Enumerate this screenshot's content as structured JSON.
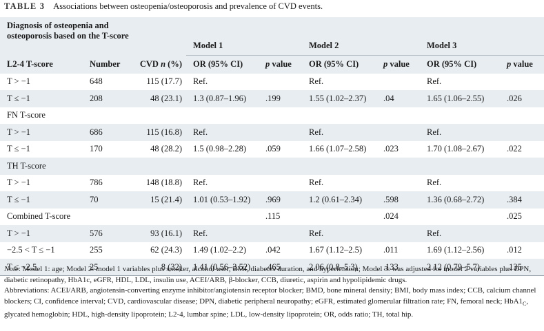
{
  "caption": {
    "label": "TABLE 3",
    "text": "Associations between osteopenia/osteoporosis and prevalence of CVD events."
  },
  "header": {
    "diagnosis_line1": "Diagnosis of osteopenia and",
    "diagnosis_line2": "osteoporosis based on the T-score",
    "model1": "Model 1",
    "model2": "Model 2",
    "model3": "Model 3",
    "col_number": "Number",
    "col_cvd_prefix": "CVD ",
    "col_cvd_italic": "n",
    "col_cvd_suffix": " (%)",
    "col_or": "OR (95% CI)",
    "col_p_italic": "p",
    "col_p_suffix": " value"
  },
  "first_group_label": "L2-4 T-score",
  "rows": [
    {
      "label": "T > −1",
      "number": "648",
      "cvd": "115 (17.7)",
      "or1": "Ref.",
      "p1": "",
      "or2": "Ref.",
      "p2": "",
      "or3": "Ref.",
      "p3": ""
    },
    {
      "label": "T ≤ −1",
      "number": "208",
      "cvd": "48 (23.1)",
      "or1": "1.3 (0.87–1.96)",
      "p1": ".199",
      "or2": "1.55 (1.02–2.37)",
      "p2": ".04",
      "or3": "1.65 (1.06–2.55)",
      "p3": ".026"
    },
    {
      "label": "FN T-score",
      "number": "",
      "cvd": "",
      "or1": "",
      "p1": "",
      "or2": "",
      "p2": "",
      "or3": "",
      "p3": ""
    },
    {
      "label": "T > −1",
      "number": "686",
      "cvd": "115 (16.8)",
      "or1": "Ref.",
      "p1": "",
      "or2": "Ref.",
      "p2": "",
      "or3": "Ref.",
      "p3": ""
    },
    {
      "label": "T ≤ −1",
      "number": "170",
      "cvd": "48 (28.2)",
      "or1": "1.5 (0.98–2.28)",
      "p1": ".059",
      "or2": "1.66 (1.07–2.58)",
      "p2": ".023",
      "or3": "1.70 (1.08–2.67)",
      "p3": ".022"
    },
    {
      "label": "TH T-score",
      "number": "",
      "cvd": "",
      "or1": "",
      "p1": "",
      "or2": "",
      "p2": "",
      "or3": "",
      "p3": ""
    },
    {
      "label": "T > −1",
      "number": "786",
      "cvd": "148 (18.8)",
      "or1": "Ref.",
      "p1": "",
      "or2": "Ref.",
      "p2": "",
      "or3": "Ref.",
      "p3": ""
    },
    {
      "label": "T ≤ −1",
      "number": "70",
      "cvd": "15 (21.4)",
      "or1": "1.01 (0.53–1.92)",
      "p1": ".969",
      "or2": "1.2 (0.61–2.34)",
      "p2": ".598",
      "or3": "1.36 (0.68–2.72)",
      "p3": ".384"
    },
    {
      "label": "Combined T-score",
      "number": "",
      "cvd": "",
      "or1": "",
      "p1": ".115",
      "or2": "",
      "p2": ".024",
      "or3": "",
      "p3": ".025"
    },
    {
      "label": "T > −1",
      "number": "576",
      "cvd": "93 (16.1)",
      "or1": "Ref.",
      "p1": "",
      "or2": "Ref.",
      "p2": "",
      "or3": "Ref.",
      "p3": ""
    },
    {
      "label": "−2.5 < T ≤ −1",
      "number": "255",
      "cvd": "62 (24.3)",
      "or1": "1.49 (1.02–2.2)",
      "p1": ".042",
      "or2": "1.67 (1.12–2.5)",
      "p2": ".011",
      "or3": "1.69 (1.12–2.56)",
      "p3": ".012"
    },
    {
      "label": "T ≤ −2.5",
      "number": "25",
      "cvd": "8 (32)",
      "or1": "1.41 (0.56–3.52)",
      "p1": ".465",
      "or2": "2.06 (0.8–5.3)",
      "p2": ".133",
      "or3": "2.12 (0.79–5.7)",
      "p3": ".135"
    }
  ],
  "note": {
    "label": "Note",
    "text1": ": Model 1: age; Model 2: model 1 variables plus smoker, alcohol user, BMI, diabetes duration, and hypertension; Model 3: was adjusted for model 2 variables plus DPN, diabetic retinopathy, HbA1c, eGFR, HDL, LDL, insulin use, ACEI/ARB, β-blocker, CCB, diuretic, aspirin and hypolipidemic drugs.",
    "text2": "Abbreviations: ACEI/ARB, angiotensin-converting enzyme inhibitor/angiotensin receptor blocker; BMD, bone mineral density; BMI, body mass index; CCB, calcium channel blockers; CI, confidence interval; CVD, cardiovascular disease; DPN, diabetic peripheral neuropathy; eGFR, estimated glomerular filtration rate; FN, femoral neck; HbA1",
    "sub_c": "C",
    "text3": ", glycated hemoglobin; HDL, high-density lipoprotein; L2-4, lumbar spine; LDL, low-density lipoprotein; OR, odds ratio; TH, total hip."
  }
}
